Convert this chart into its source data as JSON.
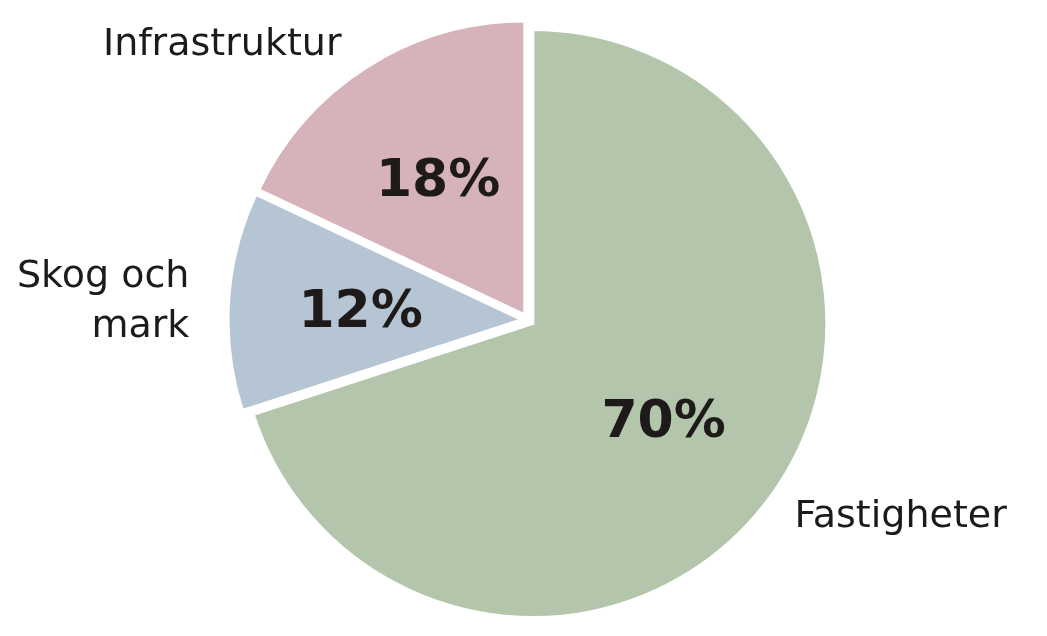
{
  "chart_data": {
    "type": "pie",
    "categories": [
      "Fastigheter",
      "Skog och mark",
      "Infrastruktur"
    ],
    "values": [
      70,
      12,
      18
    ],
    "colors": [
      "#b3c6ab",
      "#b5c5d4",
      "#d6b2bb"
    ],
    "value_labels": [
      "70%",
      "12%",
      "18%"
    ]
  }
}
